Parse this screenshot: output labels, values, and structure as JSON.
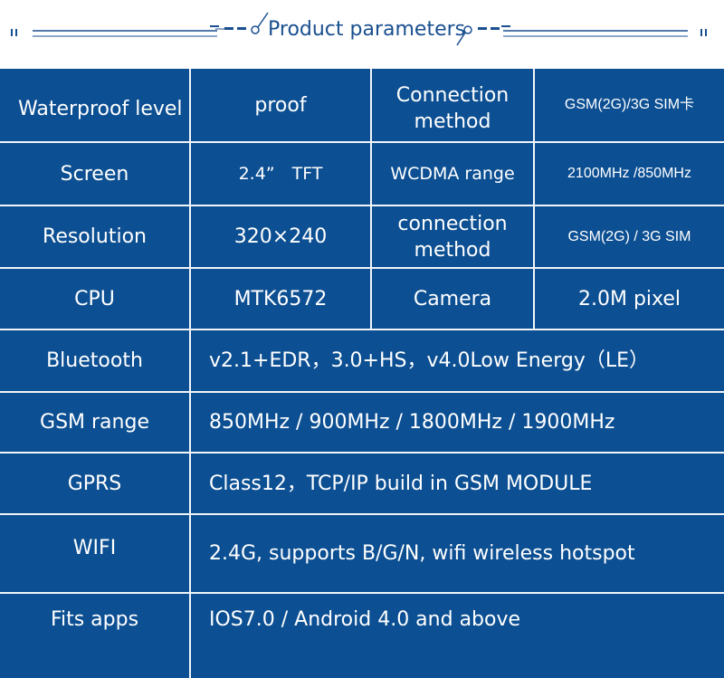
{
  "header": {
    "title": "Product parameters"
  },
  "colors": {
    "table_bg": "#0c4f92",
    "grid_line": "#f2f5f9",
    "header_accent": "#1a4f8f",
    "text": "#ffffff"
  },
  "rows": {
    "r1": {
      "label": "Waterproof level",
      "value": "proof",
      "label2": "Connection method",
      "value2": "GSM(2G)/3G SIM卡"
    },
    "r2": {
      "label": "Screen",
      "value": "2.4”　TFT",
      "label2": "WCDMA range",
      "value2": "2100MHz /850MHz"
    },
    "r3": {
      "label": "Resolution",
      "value": "320×240",
      "label2": "connection method",
      "value2": "GSM(2G) / 3G SIM"
    },
    "r4": {
      "label": "CPU",
      "value": "MTK6572",
      "label2": "Camera",
      "value2": "2.0M pixel"
    },
    "r5": {
      "label": "Bluetooth",
      "value": "v2.1+EDR，3.0+HS，v4.0Low Energy（LE）"
    },
    "r6": {
      "label": "GSM range",
      "value": "850MHz / 900MHz / 1800MHz / 1900MHz"
    },
    "r7": {
      "label": "GPRS",
      "value": "Class12，TCP/IP build in GSM MODULE"
    },
    "r8": {
      "label": "WIFI",
      "value": "2.4G, supports B/G/N, wifi wireless hotspot"
    },
    "r9": {
      "label": "Fits apps",
      "value": "IOS7.0 / Android 4.0 and above"
    }
  }
}
